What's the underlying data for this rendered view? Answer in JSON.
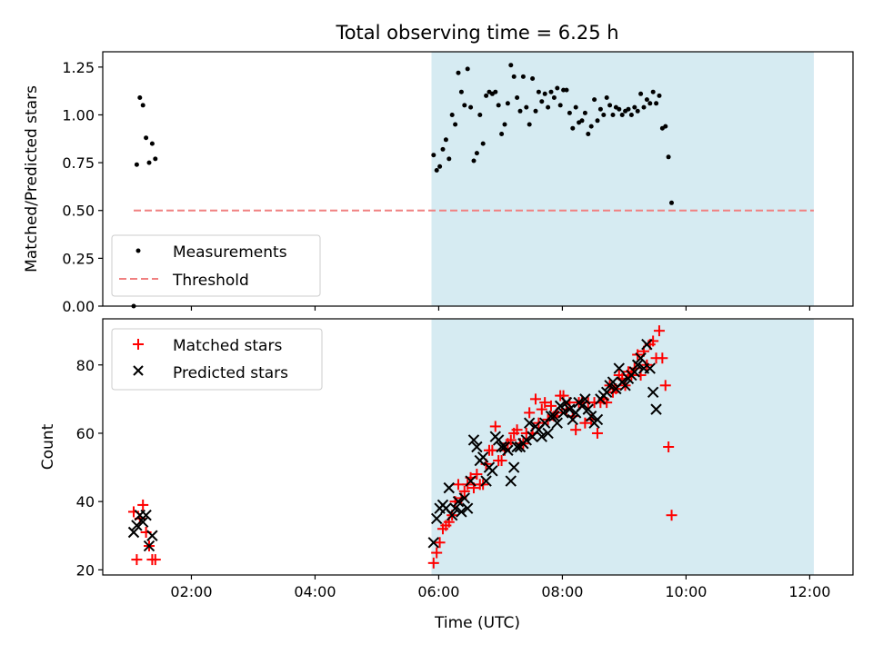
{
  "title": "Total observing time = 6.25 h",
  "colors": {
    "measurements": "#000000",
    "threshold": "#f08080",
    "matched": "#ff0000",
    "predicted": "#000000",
    "observing_window": "#add8e6"
  },
  "chart_data": [
    {
      "type": "scatter",
      "panel": "top",
      "ylabel": "Matched/Predicted stars",
      "ylim": [
        0,
        1.33
      ],
      "yticks": [
        "0.00",
        "0.25",
        "0.50",
        "0.75",
        "1.00",
        "1.25"
      ],
      "xlim": [
        "00:34",
        "12:42"
      ],
      "grid": false,
      "legend": {
        "placement": "lower-left",
        "entries": [
          "Measurements",
          "Threshold"
        ]
      },
      "shaded_interval": [
        "05:53",
        "12:04"
      ],
      "threshold": {
        "name": "Threshold",
        "y": 0.5,
        "x_range": [
          "01:04",
          "12:04"
        ],
        "style": "dashed"
      },
      "series": [
        {
          "name": "Measurements",
          "marker": "dot",
          "points": [
            [
              "01:04",
              0.0
            ],
            [
              "01:07",
              0.74
            ],
            [
              "01:10",
              1.09
            ],
            [
              "01:13",
              1.05
            ],
            [
              "01:16",
              0.88
            ],
            [
              "01:19",
              0.75
            ],
            [
              "01:22",
              0.85
            ],
            [
              "01:25",
              0.77
            ],
            [
              "05:55",
              0.79
            ],
            [
              "05:58",
              0.71
            ],
            [
              "06:01",
              0.73
            ],
            [
              "06:04",
              0.82
            ],
            [
              "06:07",
              0.87
            ],
            [
              "06:10",
              0.77
            ],
            [
              "06:13",
              1.0
            ],
            [
              "06:16",
              0.95
            ],
            [
              "06:19",
              1.22
            ],
            [
              "06:22",
              1.12
            ],
            [
              "06:25",
              1.05
            ],
            [
              "06:28",
              1.24
            ],
            [
              "06:31",
              1.04
            ],
            [
              "06:34",
              0.76
            ],
            [
              "06:37",
              0.8
            ],
            [
              "06:40",
              1.0
            ],
            [
              "06:43",
              0.85
            ],
            [
              "06:46",
              1.1
            ],
            [
              "06:49",
              1.12
            ],
            [
              "06:52",
              1.11
            ],
            [
              "06:55",
              1.12
            ],
            [
              "06:58",
              1.05
            ],
            [
              "07:01",
              0.9
            ],
            [
              "07:04",
              0.95
            ],
            [
              "07:07",
              1.06
            ],
            [
              "07:10",
              1.26
            ],
            [
              "07:13",
              1.2
            ],
            [
              "07:16",
              1.09
            ],
            [
              "07:19",
              1.02
            ],
            [
              "07:22",
              1.2
            ],
            [
              "07:25",
              1.04
            ],
            [
              "07:28",
              0.95
            ],
            [
              "07:31",
              1.19
            ],
            [
              "07:34",
              1.02
            ],
            [
              "07:37",
              1.12
            ],
            [
              "07:40",
              1.07
            ],
            [
              "07:43",
              1.11
            ],
            [
              "07:46",
              1.04
            ],
            [
              "07:49",
              1.12
            ],
            [
              "07:52",
              1.09
            ],
            [
              "07:55",
              1.14
            ],
            [
              "07:58",
              1.05
            ],
            [
              "08:01",
              1.13
            ],
            [
              "08:04",
              1.13
            ],
            [
              "08:07",
              1.01
            ],
            [
              "08:10",
              0.93
            ],
            [
              "08:13",
              1.04
            ],
            [
              "08:16",
              0.96
            ],
            [
              "08:19",
              0.97
            ],
            [
              "08:22",
              1.01
            ],
            [
              "08:25",
              0.9
            ],
            [
              "08:28",
              0.94
            ],
            [
              "08:31",
              1.08
            ],
            [
              "08:34",
              0.97
            ],
            [
              "08:37",
              1.03
            ],
            [
              "08:40",
              1.0
            ],
            [
              "08:43",
              1.09
            ],
            [
              "08:46",
              1.05
            ],
            [
              "08:49",
              1.0
            ],
            [
              "08:52",
              1.04
            ],
            [
              "08:55",
              1.03
            ],
            [
              "08:58",
              1.0
            ],
            [
              "09:01",
              1.02
            ],
            [
              "09:04",
              1.03
            ],
            [
              "09:07",
              1.0
            ],
            [
              "09:10",
              1.04
            ],
            [
              "09:13",
              1.02
            ],
            [
              "09:16",
              1.11
            ],
            [
              "09:19",
              1.04
            ],
            [
              "09:22",
              1.08
            ],
            [
              "09:25",
              1.06
            ],
            [
              "09:28",
              1.12
            ],
            [
              "09:31",
              1.06
            ],
            [
              "09:34",
              1.1
            ],
            [
              "09:37",
              0.93
            ],
            [
              "09:40",
              0.94
            ],
            [
              "09:43",
              0.78
            ],
            [
              "09:46",
              0.54
            ]
          ]
        }
      ]
    },
    {
      "type": "scatter",
      "panel": "bottom",
      "xlabel": "Time (UTC)",
      "ylabel": "Count",
      "ylim": [
        18.5,
        93.5
      ],
      "yticks": [
        "20",
        "40",
        "60",
        "80"
      ],
      "xlim": [
        "00:34",
        "12:42"
      ],
      "xticks": [
        "02:00",
        "04:00",
        "06:00",
        "08:00",
        "10:00",
        "12:00"
      ],
      "grid": false,
      "legend": {
        "placement": "upper-left",
        "entries": [
          "Matched stars",
          "Predicted stars"
        ]
      },
      "shaded_interval": [
        "05:53",
        "12:04"
      ],
      "series": [
        {
          "name": "Matched stars",
          "marker": "plus",
          "points": [
            [
              "01:04",
              37
            ],
            [
              "01:07",
              23
            ],
            [
              "01:10",
              35
            ],
            [
              "01:13",
              39
            ],
            [
              "01:16",
              31
            ],
            [
              "01:19",
              27
            ],
            [
              "01:22",
              23
            ],
            [
              "01:25",
              23
            ],
            [
              "05:55",
              22
            ],
            [
              "05:58",
              25
            ],
            [
              "06:01",
              28
            ],
            [
              "06:04",
              32
            ],
            [
              "06:07",
              33
            ],
            [
              "06:10",
              34
            ],
            [
              "06:13",
              36
            ],
            [
              "06:16",
              40
            ],
            [
              "06:19",
              45
            ],
            [
              "06:22",
              41
            ],
            [
              "06:25",
              43
            ],
            [
              "06:28",
              45
            ],
            [
              "06:31",
              47
            ],
            [
              "06:34",
              44
            ],
            [
              "06:37",
              48
            ],
            [
              "06:40",
              45
            ],
            [
              "06:43",
              45
            ],
            [
              "06:46",
              51
            ],
            [
              "06:49",
              55
            ],
            [
              "06:52",
              55
            ],
            [
              "06:55",
              62
            ],
            [
              "06:58",
              52
            ],
            [
              "07:01",
              52
            ],
            [
              "07:04",
              55
            ],
            [
              "07:07",
              57
            ],
            [
              "07:10",
              58
            ],
            [
              "07:13",
              60
            ],
            [
              "07:16",
              61
            ],
            [
              "07:19",
              57
            ],
            [
              "07:22",
              57
            ],
            [
              "07:25",
              60
            ],
            [
              "07:28",
              66
            ],
            [
              "07:31",
              60
            ],
            [
              "07:34",
              70
            ],
            [
              "07:37",
              63
            ],
            [
              "07:40",
              67
            ],
            [
              "07:43",
              69
            ],
            [
              "07:46",
              64
            ],
            [
              "07:49",
              68
            ],
            [
              "07:52",
              65
            ],
            [
              "07:55",
              66
            ],
            [
              "07:58",
              71
            ],
            [
              "08:01",
              71
            ],
            [
              "08:04",
              67
            ],
            [
              "08:07",
              69
            ],
            [
              "08:10",
              65
            ],
            [
              "08:13",
              61
            ],
            [
              "08:16",
              69
            ],
            [
              "08:19",
              69
            ],
            [
              "08:22",
              63
            ],
            [
              "08:25",
              69
            ],
            [
              "08:28",
              64
            ],
            [
              "08:31",
              69
            ],
            [
              "08:34",
              60
            ],
            [
              "08:37",
              69
            ],
            [
              "08:40",
              70
            ],
            [
              "08:43",
              69
            ],
            [
              "08:46",
              74
            ],
            [
              "08:49",
              72
            ],
            [
              "08:52",
              73
            ],
            [
              "08:55",
              77
            ],
            [
              "08:58",
              76
            ],
            [
              "09:01",
              74
            ],
            [
              "09:04",
              78
            ],
            [
              "09:07",
              77
            ],
            [
              "09:10",
              79
            ],
            [
              "09:13",
              83
            ],
            [
              "09:16",
              77
            ],
            [
              "09:19",
              84
            ],
            [
              "09:22",
              80
            ],
            [
              "09:25",
              86
            ],
            [
              "09:28",
              87
            ],
            [
              "09:31",
              82
            ],
            [
              "09:34",
              90
            ],
            [
              "09:37",
              82
            ],
            [
              "09:40",
              74
            ],
            [
              "09:43",
              56
            ],
            [
              "09:46",
              36
            ]
          ]
        },
        {
          "name": "Predicted stars",
          "marker": "x",
          "points": [
            [
              "01:04",
              31
            ],
            [
              "01:07",
              33
            ],
            [
              "01:10",
              36
            ],
            [
              "01:13",
              34
            ],
            [
              "01:16",
              36
            ],
            [
              "01:19",
              27
            ],
            [
              "01:22",
              30
            ],
            [
              "05:55",
              28
            ],
            [
              "05:58",
              35
            ],
            [
              "06:01",
              38
            ],
            [
              "06:04",
              39
            ],
            [
              "06:07",
              38
            ],
            [
              "06:10",
              44
            ],
            [
              "06:13",
              36
            ],
            [
              "06:16",
              38
            ],
            [
              "06:19",
              40
            ],
            [
              "06:22",
              37
            ],
            [
              "06:25",
              41
            ],
            [
              "06:28",
              38
            ],
            [
              "06:31",
              46
            ],
            [
              "06:34",
              58
            ],
            [
              "06:37",
              56
            ],
            [
              "06:40",
              52
            ],
            [
              "06:43",
              53
            ],
            [
              "06:46",
              46
            ],
            [
              "06:49",
              50
            ],
            [
              "06:52",
              49
            ],
            [
              "06:55",
              59
            ],
            [
              "06:58",
              58
            ],
            [
              "07:01",
              56
            ],
            [
              "07:04",
              56
            ],
            [
              "07:07",
              55
            ],
            [
              "07:10",
              46
            ],
            [
              "07:13",
              50
            ],
            [
              "07:16",
              56
            ],
            [
              "07:19",
              56
            ],
            [
              "07:22",
              57
            ],
            [
              "07:25",
              58
            ],
            [
              "07:28",
              63
            ],
            [
              "07:31",
              59
            ],
            [
              "07:34",
              62
            ],
            [
              "07:37",
              61
            ],
            [
              "07:40",
              59
            ],
            [
              "07:43",
              63
            ],
            [
              "07:46",
              60
            ],
            [
              "07:49",
              65
            ],
            [
              "07:52",
              65
            ],
            [
              "07:55",
              63
            ],
            [
              "07:58",
              68
            ],
            [
              "08:01",
              66
            ],
            [
              "08:04",
              69
            ],
            [
              "08:07",
              67
            ],
            [
              "08:10",
              64
            ],
            [
              "08:13",
              66
            ],
            [
              "08:16",
              69
            ],
            [
              "08:19",
              68
            ],
            [
              "08:22",
              70
            ],
            [
              "08:25",
              67
            ],
            [
              "08:28",
              65
            ],
            [
              "08:31",
              63
            ],
            [
              "08:34",
              64
            ],
            [
              "08:37",
              70
            ],
            [
              "08:40",
              71
            ],
            [
              "08:43",
              72
            ],
            [
              "08:46",
              74
            ],
            [
              "08:49",
              75
            ],
            [
              "08:52",
              73
            ],
            [
              "08:55",
              79
            ],
            [
              "08:58",
              75
            ],
            [
              "09:01",
              74
            ],
            [
              "09:04",
              76
            ],
            [
              "09:07",
              77
            ],
            [
              "09:10",
              78
            ],
            [
              "09:13",
              80
            ],
            [
              "09:16",
              82
            ],
            [
              "09:19",
              79
            ],
            [
              "09:22",
              86
            ],
            [
              "09:25",
              79
            ],
            [
              "09:28",
              72
            ],
            [
              "09:31",
              67
            ]
          ]
        }
      ]
    }
  ]
}
